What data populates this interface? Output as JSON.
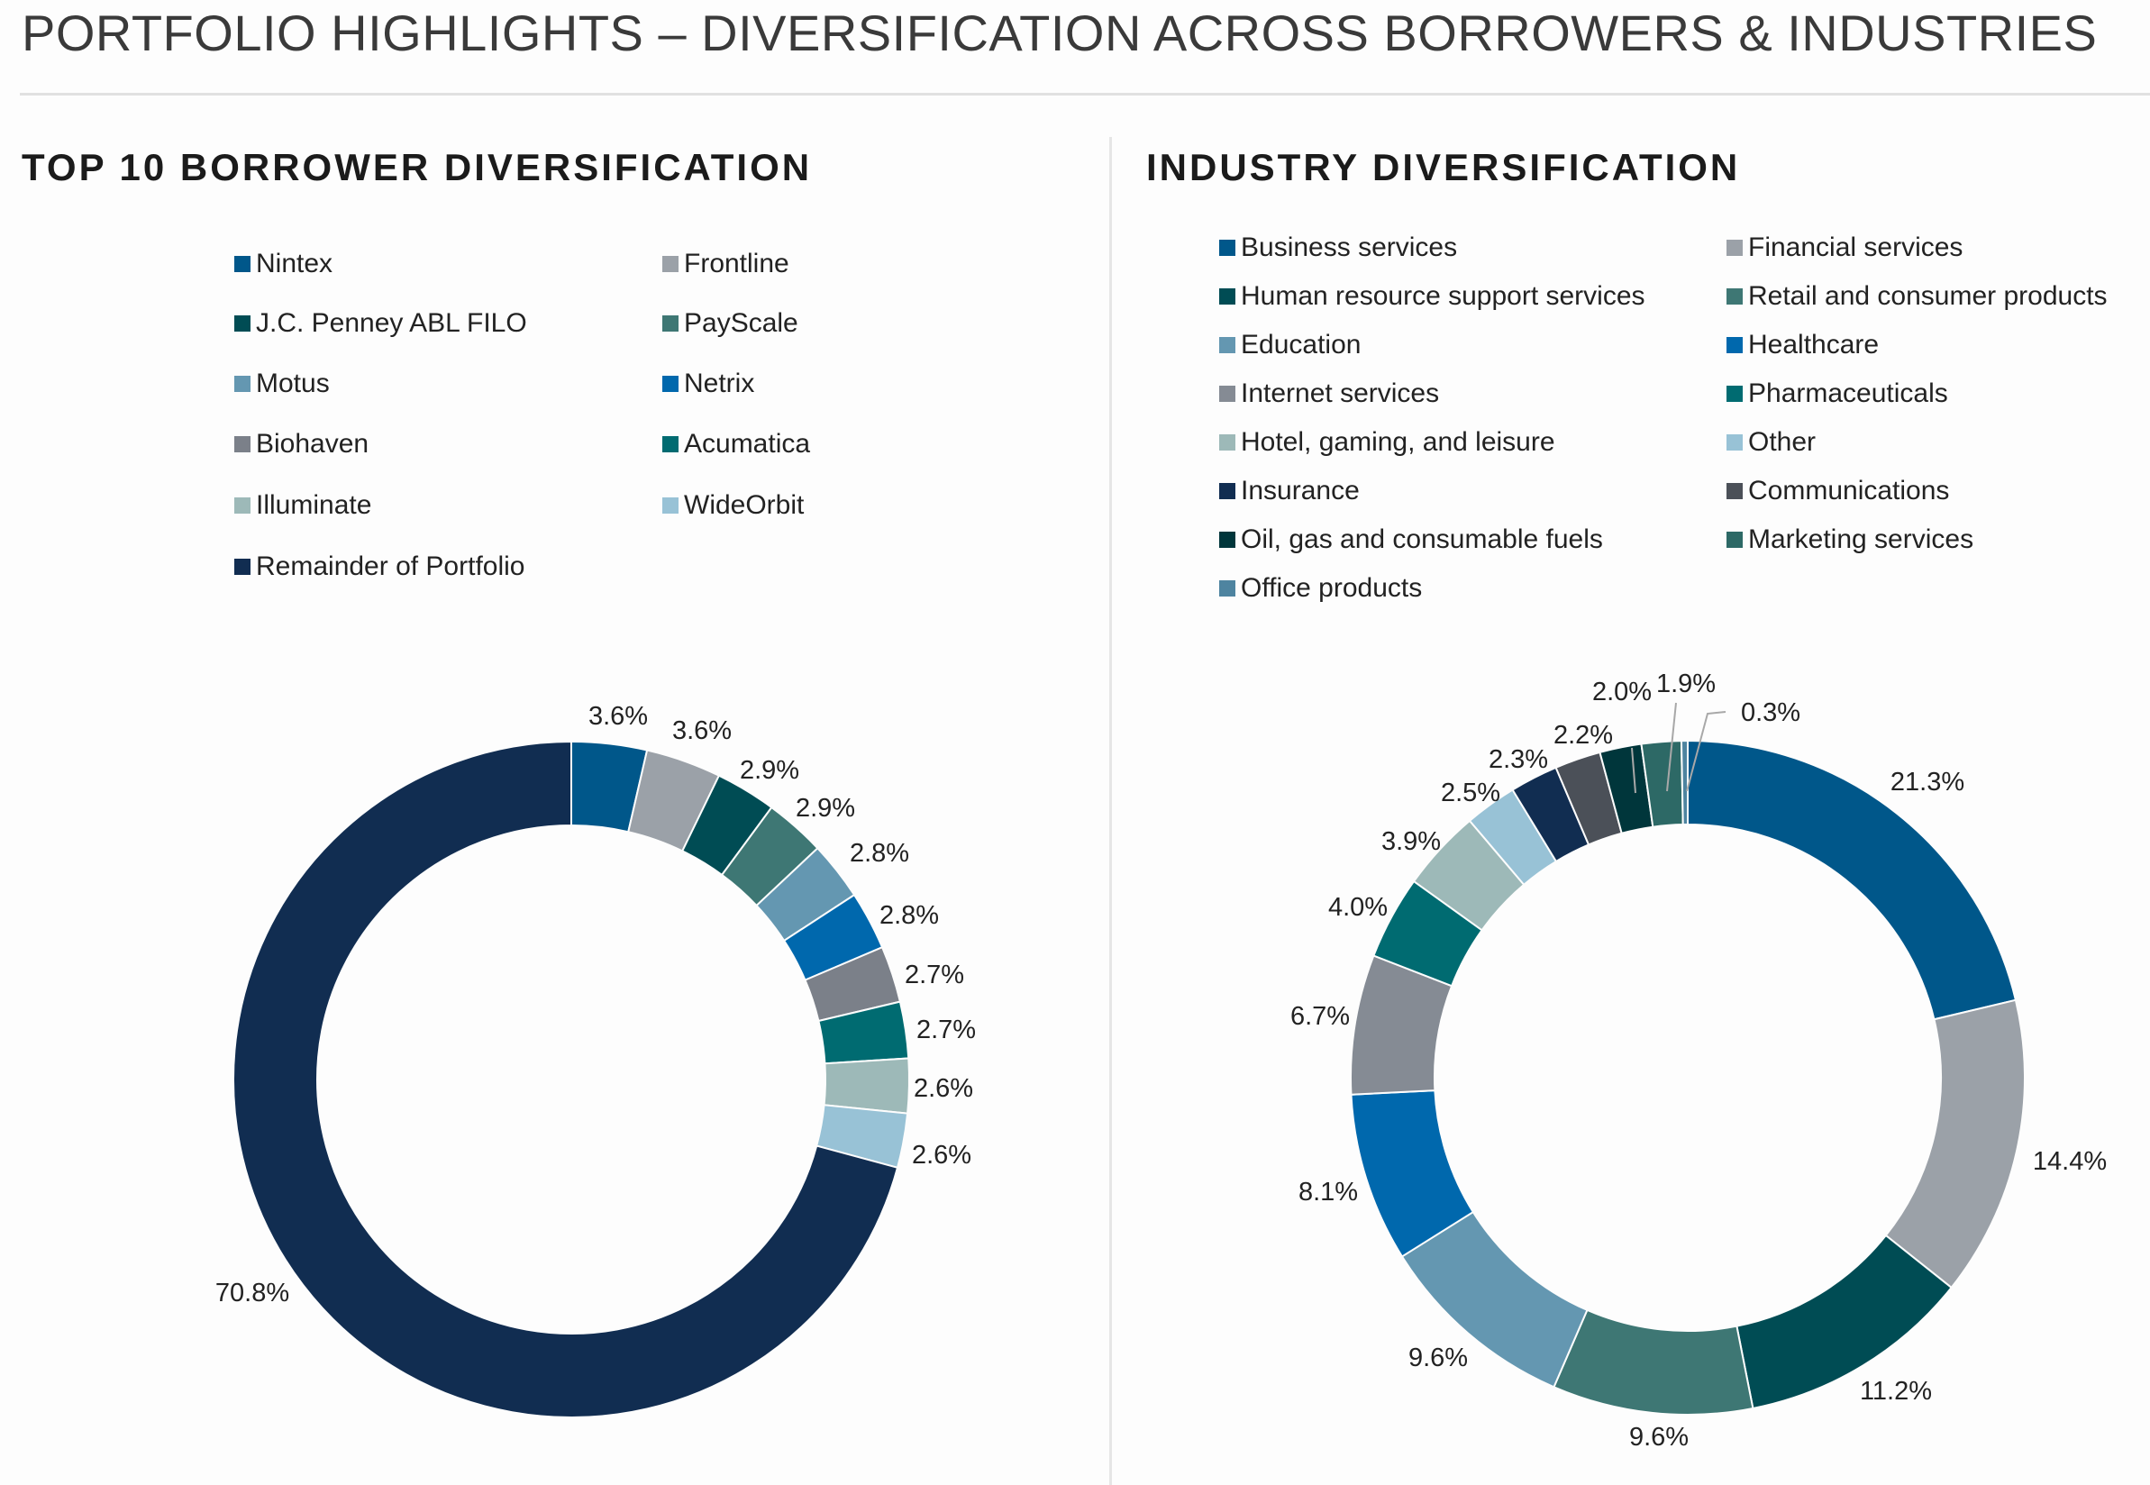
{
  "page": {
    "title": "PORTFOLIO HIGHLIGHTS – DIVERSIFICATION ACROSS BORROWERS & INDUSTRIES"
  },
  "chart_data": [
    {
      "type": "pie",
      "variant": "donut",
      "title": "TOP 10 BORROWER DIVERSIFICATION",
      "legend_position": "top",
      "categories": [
        "Nintex",
        "Frontline",
        "J.C. Penney ABL FILO",
        "PayScale",
        "Motus",
        "Netrix",
        "Biohaven",
        "Acumatica",
        "Illuminate",
        "WideOrbit",
        "Remainder of Portfolio"
      ],
      "values": [
        3.6,
        3.6,
        2.9,
        2.9,
        2.8,
        2.8,
        2.7,
        2.7,
        2.6,
        2.6,
        70.8
      ],
      "labels": [
        "3.6%",
        "3.6%",
        "2.9%",
        "2.9%",
        "2.8%",
        "2.8%",
        "2.7%",
        "2.7%",
        "2.6%",
        "2.6%",
        "70.8%"
      ],
      "colors": [
        "#00578A",
        "#9BA1A8",
        "#004C54",
        "#3E7774",
        "#6497B1",
        "#0068AD",
        "#7B8089",
        "#006B71",
        "#9DB9B8",
        "#98C2D6",
        "#112D51"
      ]
    },
    {
      "type": "pie",
      "variant": "donut",
      "title": "INDUSTRY DIVERSIFICATION",
      "legend_position": "top",
      "categories": [
        "Business services",
        "Financial services",
        "Human resource support services",
        "Retail and consumer products",
        "Education",
        "Healthcare",
        "Internet services",
        "Pharmaceuticals",
        "Hotel, gaming, and leisure",
        "Other",
        "Insurance",
        "Communications",
        "Oil, gas and consumable fuels",
        "Marketing services",
        "Office products"
      ],
      "values": [
        21.3,
        14.4,
        11.2,
        9.6,
        9.6,
        8.1,
        6.7,
        4.0,
        3.9,
        2.5,
        2.3,
        2.2,
        2.0,
        1.9,
        0.3
      ],
      "labels": [
        "21.3%",
        "14.4%",
        "11.2%",
        "9.6%",
        "9.6%",
        "8.1%",
        "6.7%",
        "4.0%",
        "3.9%",
        "2.5%",
        "2.3%",
        "2.2%",
        "2.0%",
        "1.9%",
        "0.3%"
      ],
      "colors": [
        "#00578A",
        "#9BA1A8",
        "#004C54",
        "#3E7774",
        "#6497B1",
        "#0068AD",
        "#858B94",
        "#006B71",
        "#9DB9B8",
        "#98C2D6",
        "#112D51",
        "#4B5058",
        "#00363B",
        "#2D6966",
        "#4E84A0"
      ]
    }
  ]
}
